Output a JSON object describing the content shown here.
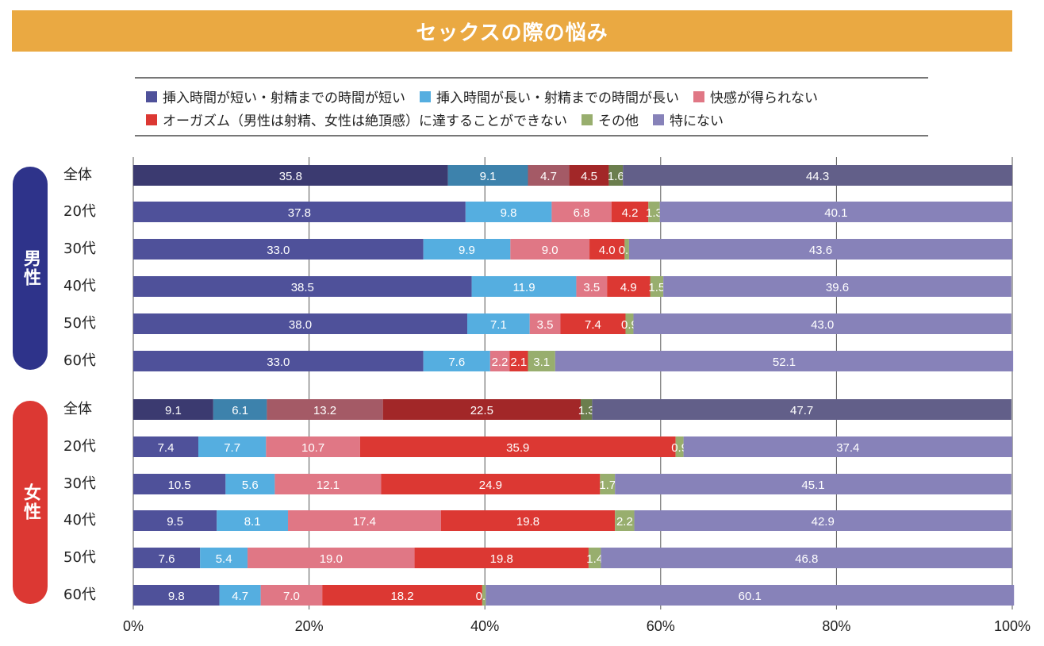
{
  "title": "セックスの際の悩み",
  "legend": [
    {
      "label": "挿入時間が短い・射精までの時間が短い",
      "color": "#4F519A"
    },
    {
      "label": "挿入時間が長い・射精までの時間が長い",
      "color": "#55AEE0"
    },
    {
      "label": "快感が得られない",
      "color": "#E07785"
    },
    {
      "label": "オーガズム（男性は射精、女性は絶頂感）に達することができない",
      "color": "#DC3833"
    },
    {
      "label": "その他",
      "color": "#98AE6E"
    },
    {
      "label": "特にない",
      "color": "#8782B9"
    }
  ],
  "total_row_colors": [
    "#3B3A70",
    "#3D82AC",
    "#A45A66",
    "#A22728",
    "#6B7E4D",
    "#625F89"
  ],
  "groups": [
    {
      "label": "男性",
      "color": "#2E338A"
    },
    {
      "label": "女性",
      "color": "#DC3833"
    }
  ],
  "chart_data": {
    "type": "bar",
    "orientation": "horizontal",
    "stacked": true,
    "title": "セックスの際の悩み",
    "xlabel": "",
    "ylabel": "",
    "xlim": [
      0,
      100
    ],
    "x_ticks": [
      "0%",
      "20%",
      "40%",
      "60%",
      "80%",
      "100%"
    ],
    "grid": true,
    "legend_position": "top",
    "series_names": [
      "挿入時間が短い・射精までの時間が短い",
      "挿入時間が長い・射精までの時間が長い",
      "快感が得られない",
      "オーガズム（男性は射精、女性は絶頂感）に達することができない",
      "その他",
      "特にない"
    ],
    "rows": [
      {
        "group": "男性",
        "category": "全体",
        "values": [
          35.8,
          9.1,
          4.7,
          4.5,
          1.6,
          44.3
        ],
        "is_total": true
      },
      {
        "group": "男性",
        "category": "20代",
        "values": [
          37.8,
          9.8,
          6.8,
          4.2,
          1.3,
          40.1
        ]
      },
      {
        "group": "男性",
        "category": "30代",
        "values": [
          33.0,
          9.9,
          9.0,
          4.0,
          0.5,
          43.6
        ]
      },
      {
        "group": "男性",
        "category": "40代",
        "values": [
          38.5,
          11.9,
          3.5,
          4.9,
          1.5,
          39.6
        ]
      },
      {
        "group": "男性",
        "category": "50代",
        "values": [
          38.0,
          7.1,
          3.5,
          7.4,
          0.9,
          43.0
        ]
      },
      {
        "group": "男性",
        "category": "60代",
        "values": [
          33.0,
          7.6,
          2.2,
          2.1,
          3.1,
          52.1
        ]
      },
      {
        "group": "女性",
        "category": "全体",
        "values": [
          9.1,
          6.1,
          13.2,
          22.5,
          1.3,
          47.7
        ],
        "is_total": true
      },
      {
        "group": "女性",
        "category": "20代",
        "values": [
          7.4,
          7.7,
          10.7,
          35.9,
          0.9,
          37.4
        ]
      },
      {
        "group": "女性",
        "category": "30代",
        "values": [
          10.5,
          5.6,
          12.1,
          24.9,
          1.7,
          45.1
        ]
      },
      {
        "group": "女性",
        "category": "40代",
        "values": [
          9.5,
          8.1,
          17.4,
          19.8,
          2.2,
          42.9
        ]
      },
      {
        "group": "女性",
        "category": "50代",
        "values": [
          7.6,
          5.4,
          19.0,
          19.8,
          1.4,
          46.8
        ]
      },
      {
        "group": "女性",
        "category": "60代",
        "values": [
          9.8,
          4.7,
          7.0,
          18.2,
          0.4,
          60.1
        ]
      }
    ]
  }
}
